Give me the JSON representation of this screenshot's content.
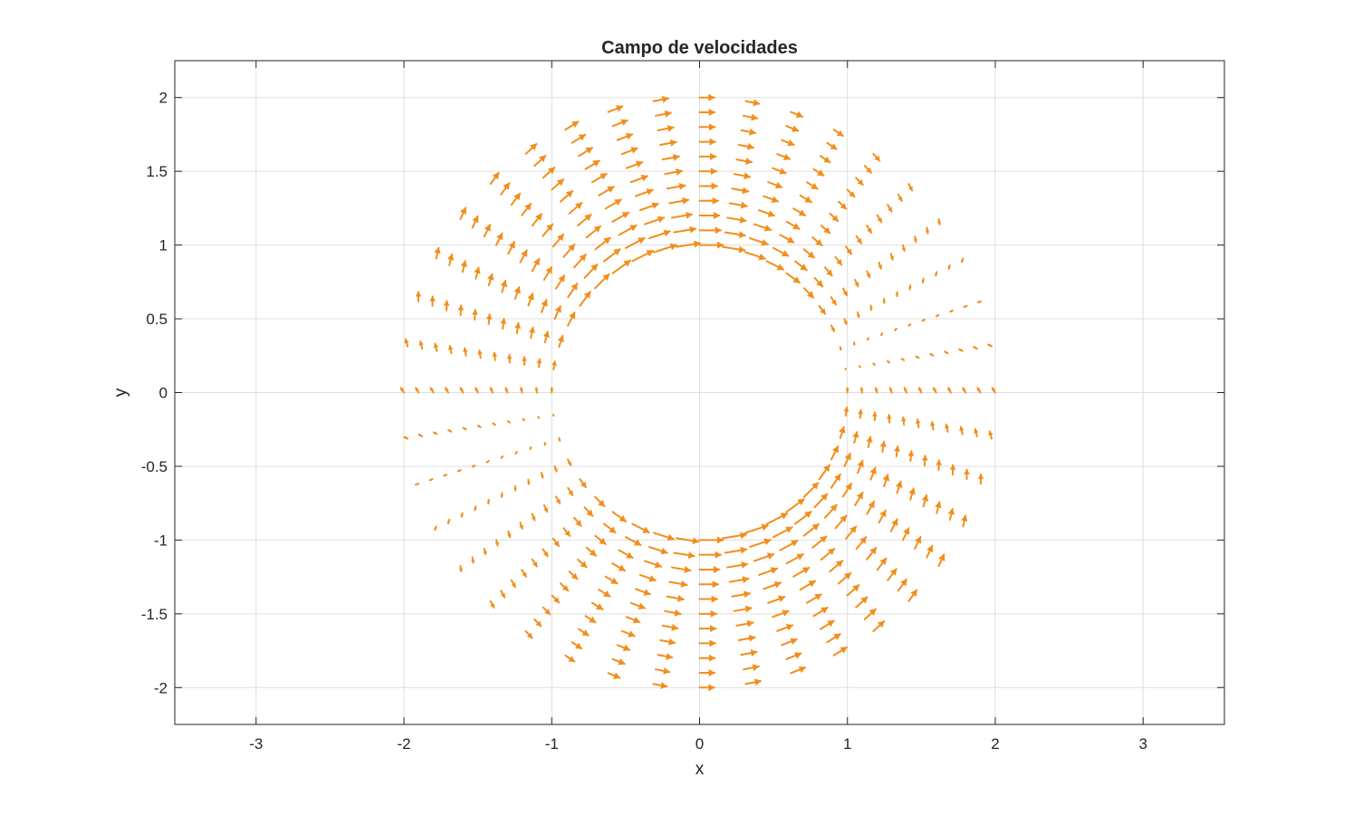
{
  "chart_data": {
    "type": "quiver",
    "title": "Campo de velocidades",
    "xlabel": "x",
    "ylabel": "y",
    "xlim": [
      -3.55,
      3.55
    ],
    "ylim": [
      -2.25,
      2.25
    ],
    "xticks": [
      -3,
      -2,
      -1,
      0,
      1,
      2,
      3
    ],
    "yticks": [
      2,
      1.5,
      1,
      0.5,
      0,
      -0.5,
      -1,
      -1.5,
      -2
    ],
    "xtick_labels": [
      "-3",
      "-2",
      "-1",
      "0",
      "1",
      "2",
      "3"
    ],
    "ytick_labels": [
      "2",
      "1.5",
      "1",
      "0.5",
      "0",
      "-0.5",
      "-1",
      "-1.5",
      "-2"
    ],
    "grid": true,
    "box": true,
    "series": [
      {
        "color": "#f28e1c",
        "field": "swirl velocity on an annular polar grid",
        "r_range": [
          1,
          2
        ],
        "r_count": 11,
        "theta_count": 40
      }
    ]
  }
}
